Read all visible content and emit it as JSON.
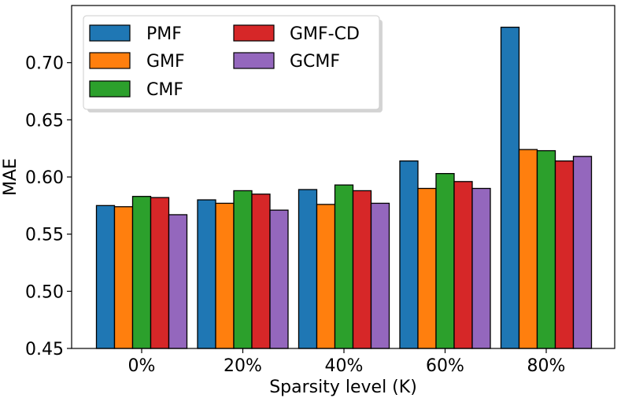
{
  "chart_data": {
    "type": "bar",
    "title": "",
    "xlabel": "Sparsity level (K)",
    "ylabel": "MAE",
    "categories": [
      "0%",
      "20%",
      "40%",
      "60%",
      "80%"
    ],
    "ylim": [
      0.45,
      0.75
    ],
    "yticks": [
      "0.45",
      "0.50",
      "0.55",
      "0.60",
      "0.65",
      "0.70"
    ],
    "grid": false,
    "legend_position": "top-left",
    "series": [
      {
        "name": "PMF",
        "color": "#1f77b4",
        "values": [
          0.575,
          0.58,
          0.589,
          0.614,
          0.731
        ]
      },
      {
        "name": "GMF",
        "color": "#ff7f0e",
        "values": [
          0.574,
          0.577,
          0.576,
          0.59,
          0.624
        ]
      },
      {
        "name": "CMF",
        "color": "#2ca02c",
        "values": [
          0.583,
          0.588,
          0.593,
          0.603,
          0.623
        ]
      },
      {
        "name": "GMF-CD",
        "color": "#d62728",
        "values": [
          0.582,
          0.585,
          0.588,
          0.596,
          0.614
        ]
      },
      {
        "name": "GCMF",
        "color": "#9467bd",
        "values": [
          0.567,
          0.571,
          0.577,
          0.59,
          0.618
        ]
      }
    ]
  }
}
